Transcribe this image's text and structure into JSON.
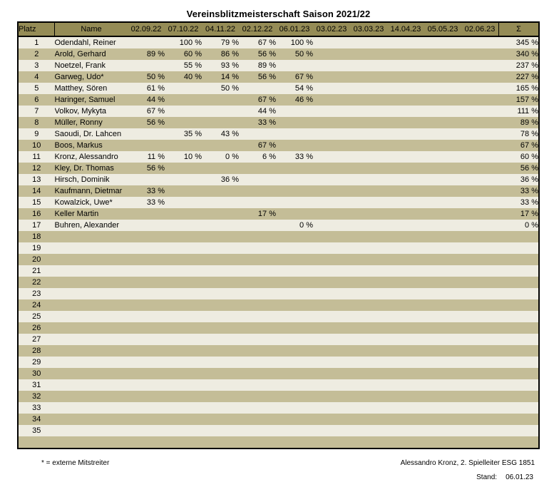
{
  "title": "Vereinsblitzmeisterschaft Saison 2021/22",
  "colors": {
    "header_bg": "#958C56",
    "row_dark": "#C4BD97",
    "row_light": "#EEECE1",
    "border": "#000000"
  },
  "table": {
    "columns": {
      "platz": "Platz",
      "name": "Name",
      "dates": [
        "02.09.22",
        "07.10.22",
        "04.11.22",
        "02.12.22",
        "06.01.23",
        "03.02.23",
        "03.03.23",
        "14.04.23",
        "05.05.23",
        "02.06.23"
      ],
      "sum": "Σ"
    },
    "rows": [
      {
        "platz": "1",
        "name": "Odendahl, Reiner",
        "values": [
          "",
          "100 %",
          "79 %",
          "67 %",
          "100 %",
          "",
          "",
          "",
          "",
          ""
        ],
        "sum": "345 %"
      },
      {
        "platz": "2",
        "name": "Arold, Gerhard",
        "values": [
          "89 %",
          "60 %",
          "86 %",
          "56 %",
          "50 %",
          "",
          "",
          "",
          "",
          ""
        ],
        "sum": "340 %"
      },
      {
        "platz": "3",
        "name": "Noetzel, Frank",
        "values": [
          "",
          "55 %",
          "93 %",
          "89 %",
          "",
          "",
          "",
          "",
          "",
          ""
        ],
        "sum": "237 %"
      },
      {
        "platz": "4",
        "name": "Garweg, Udo*",
        "values": [
          "50 %",
          "40 %",
          "14 %",
          "56 %",
          "67 %",
          "",
          "",
          "",
          "",
          ""
        ],
        "sum": "227 %"
      },
      {
        "platz": "5",
        "name": "Matthey, Sören",
        "values": [
          "61 %",
          "",
          "50 %",
          "",
          "54 %",
          "",
          "",
          "",
          "",
          ""
        ],
        "sum": "165 %"
      },
      {
        "platz": "6",
        "name": "Haringer, Samuel",
        "values": [
          "44 %",
          "",
          "",
          "67 %",
          "46 %",
          "",
          "",
          "",
          "",
          ""
        ],
        "sum": "157 %"
      },
      {
        "platz": "7",
        "name": "Volkov, Mykyta",
        "values": [
          "67 %",
          "",
          "",
          "44 %",
          "",
          "",
          "",
          "",
          "",
          ""
        ],
        "sum": "111 %"
      },
      {
        "platz": "8",
        "name": "Müller, Ronny",
        "values": [
          "56 %",
          "",
          "",
          "33 %",
          "",
          "",
          "",
          "",
          "",
          ""
        ],
        "sum": "89 %"
      },
      {
        "platz": "9",
        "name": "Saoudi, Dr. Lahcen",
        "values": [
          "",
          "35 %",
          "43 %",
          "",
          "",
          "",
          "",
          "",
          "",
          ""
        ],
        "sum": "78 %"
      },
      {
        "platz": "10",
        "name": "Boos, Markus",
        "values": [
          "",
          "",
          "",
          "67 %",
          "",
          "",
          "",
          "",
          "",
          ""
        ],
        "sum": "67 %"
      },
      {
        "platz": "11",
        "name": "Kronz, Alessandro",
        "values": [
          "11 %",
          "10 %",
          "0 %",
          "6 %",
          "33 %",
          "",
          "",
          "",
          "",
          ""
        ],
        "sum": "60 %"
      },
      {
        "platz": "12",
        "name": "Kley, Dr. Thomas",
        "values": [
          "56 %",
          "",
          "",
          "",
          "",
          "",
          "",
          "",
          "",
          ""
        ],
        "sum": "56 %"
      },
      {
        "platz": "13",
        "name": "Hirsch, Dominik",
        "values": [
          "",
          "",
          "36 %",
          "",
          "",
          "",
          "",
          "",
          "",
          ""
        ],
        "sum": "36 %"
      },
      {
        "platz": "14",
        "name": "Kaufmann, Dietmar",
        "values": [
          "33 %",
          "",
          "",
          "",
          "",
          "",
          "",
          "",
          "",
          ""
        ],
        "sum": "33 %"
      },
      {
        "platz": "15",
        "name": "Kowalzick, Uwe*",
        "values": [
          "33 %",
          "",
          "",
          "",
          "",
          "",
          "",
          "",
          "",
          ""
        ],
        "sum": "33 %"
      },
      {
        "platz": "16",
        "name": "Keller Martin",
        "values": [
          "",
          "",
          "",
          "17 %",
          "",
          "",
          "",
          "",
          "",
          ""
        ],
        "sum": "17 %"
      },
      {
        "platz": "17",
        "name": "Buhren, Alexander",
        "values": [
          "",
          "",
          "",
          "",
          "0 %",
          "",
          "",
          "",
          "",
          ""
        ],
        "sum": "0 %"
      },
      {
        "platz": "18",
        "name": "",
        "sum": ""
      },
      {
        "platz": "19",
        "name": "",
        "sum": ""
      },
      {
        "platz": "20",
        "name": "",
        "sum": ""
      },
      {
        "platz": "21",
        "name": "",
        "sum": ""
      },
      {
        "platz": "22",
        "name": "",
        "sum": ""
      },
      {
        "platz": "23",
        "name": "",
        "sum": ""
      },
      {
        "platz": "24",
        "name": "",
        "sum": ""
      },
      {
        "platz": "25",
        "name": "",
        "sum": ""
      },
      {
        "platz": "26",
        "name": "",
        "sum": ""
      },
      {
        "platz": "27",
        "name": "",
        "sum": ""
      },
      {
        "platz": "28",
        "name": "",
        "sum": ""
      },
      {
        "platz": "29",
        "name": "",
        "sum": ""
      },
      {
        "platz": "30",
        "name": "",
        "sum": ""
      },
      {
        "platz": "31",
        "name": "",
        "sum": ""
      },
      {
        "platz": "32",
        "name": "",
        "sum": ""
      },
      {
        "platz": "33",
        "name": "",
        "sum": ""
      },
      {
        "platz": "34",
        "name": "",
        "sum": ""
      },
      {
        "platz": "35",
        "name": "",
        "sum": ""
      },
      {
        "platz": "",
        "name": "",
        "sum": ""
      }
    ]
  },
  "footer": {
    "note": "* = externe Mitstreiter",
    "credit": "Alessandro Kronz, 2. Spielleiter ESG 1851",
    "stand_label": "Stand:",
    "stand_value": "06.01.23"
  }
}
